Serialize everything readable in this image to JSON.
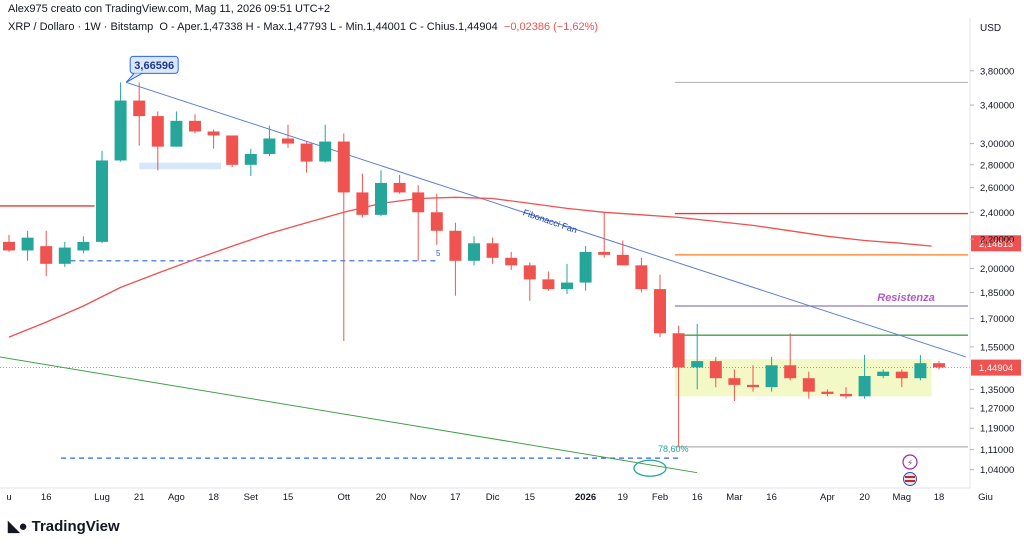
{
  "header": {
    "title": "Alex975 creato con TradingView.com, Mag 11, 2026 09:51 UTC+2",
    "symbol": "XRP / Dollaro · 1W · Bitstamp",
    "ohlc": "O - Aper.1,47338  H - Max.1,47793  L - Min.1,44001  C - Chius.1,44904",
    "change": "−0,02386 (−1,62%)"
  },
  "branding": {
    "name": "TradingView"
  },
  "colors": {
    "up": "#26a69a",
    "down": "#ef5350",
    "trendline": "#5b7fd6",
    "ma": "#f05050",
    "green_line": "#43a047",
    "orange_line": "#ff7a1a",
    "purple_line": "#8e7cc3",
    "zone": "#f3f9c6",
    "support_dash": "#2962ff"
  },
  "chart_data": {
    "type": "candlestick",
    "currency": "USD",
    "y_axis_scale": "log",
    "ylim": [
      0.98,
      4.2
    ],
    "y_ticks": [
      "3,80000",
      "3,40000",
      "3,00000",
      "2,80000",
      "2,60000",
      "2,40000",
      "2,20000",
      "2,00000",
      "1,85000",
      "1,70000",
      "1,55000",
      "1,35000",
      "1,27000",
      "1,19000",
      "1,11000",
      "1,04000"
    ],
    "y_tick_values": [
      3.8,
      3.4,
      3.0,
      2.8,
      2.6,
      2.4,
      2.2,
      2.0,
      1.85,
      1.7,
      1.55,
      1.35,
      1.27,
      1.19,
      1.11,
      1.04
    ],
    "x_ticks": [
      "u",
      "16",
      "Lug",
      "21",
      "Ago",
      "18",
      "Set",
      "15",
      "Ott",
      "20",
      "Nov",
      "17",
      "Dic",
      "15",
      "2026",
      "19",
      "Feb",
      "16",
      "Mar",
      "16",
      "Apr",
      "20",
      "Mag",
      "18",
      "Giu"
    ],
    "x_tick_weeks": [
      0,
      2,
      5,
      7,
      9,
      11,
      13,
      15,
      18,
      20,
      22,
      24,
      26,
      28,
      31,
      33,
      35,
      37,
      39,
      41,
      44,
      46,
      48,
      50,
      52.5
    ],
    "last_price": "1,44904",
    "ma_label": "2,14813",
    "candles": [
      {
        "o": 2.18,
        "h": 2.23,
        "l": 2.11,
        "c": 2.12
      },
      {
        "o": 2.12,
        "h": 2.26,
        "l": 2.05,
        "c": 2.21
      },
      {
        "o": 2.15,
        "h": 2.26,
        "l": 1.95,
        "c": 2.03
      },
      {
        "o": 2.03,
        "h": 2.18,
        "l": 2.01,
        "c": 2.14
      },
      {
        "o": 2.12,
        "h": 2.22,
        "l": 2.1,
        "c": 2.18
      },
      {
        "o": 2.18,
        "h": 2.93,
        "l": 2.17,
        "c": 2.84
      },
      {
        "o": 2.84,
        "h": 3.66,
        "l": 2.83,
        "c": 3.45
      },
      {
        "o": 3.45,
        "h": 3.66,
        "l": 2.98,
        "c": 3.28
      },
      {
        "o": 3.28,
        "h": 3.33,
        "l": 2.75,
        "c": 2.97
      },
      {
        "o": 2.97,
        "h": 3.33,
        "l": 2.97,
        "c": 3.23
      },
      {
        "o": 3.23,
        "h": 3.3,
        "l": 3.1,
        "c": 3.12
      },
      {
        "o": 3.12,
        "h": 3.14,
        "l": 2.95,
        "c": 3.08
      },
      {
        "o": 3.08,
        "h": 3.08,
        "l": 2.78,
        "c": 2.8
      },
      {
        "o": 2.8,
        "h": 2.95,
        "l": 2.7,
        "c": 2.9
      },
      {
        "o": 2.9,
        "h": 3.18,
        "l": 2.88,
        "c": 3.05
      },
      {
        "o": 3.05,
        "h": 3.19,
        "l": 2.96,
        "c": 3.0
      },
      {
        "o": 3.0,
        "h": 3.02,
        "l": 2.73,
        "c": 2.83
      },
      {
        "o": 2.83,
        "h": 3.19,
        "l": 2.82,
        "c": 3.02
      },
      {
        "o": 3.02,
        "h": 3.1,
        "l": 1.58,
        "c": 2.56
      },
      {
        "o": 2.56,
        "h": 2.72,
        "l": 2.36,
        "c": 2.38
      },
      {
        "o": 2.38,
        "h": 2.75,
        "l": 2.37,
        "c": 2.64
      },
      {
        "o": 2.64,
        "h": 2.71,
        "l": 2.55,
        "c": 2.56
      },
      {
        "o": 2.56,
        "h": 2.62,
        "l": 2.05,
        "c": 2.4
      },
      {
        "o": 2.4,
        "h": 2.55,
        "l": 2.16,
        "c": 2.26
      },
      {
        "o": 2.26,
        "h": 2.32,
        "l": 1.83,
        "c": 2.05
      },
      {
        "o": 2.05,
        "h": 2.22,
        "l": 2.02,
        "c": 2.17
      },
      {
        "o": 2.17,
        "h": 2.21,
        "l": 2.03,
        "c": 2.07
      },
      {
        "o": 2.07,
        "h": 2.11,
        "l": 1.99,
        "c": 2.02
      },
      {
        "o": 2.02,
        "h": 2.04,
        "l": 1.8,
        "c": 1.93
      },
      {
        "o": 1.93,
        "h": 1.98,
        "l": 1.86,
        "c": 1.87
      },
      {
        "o": 1.87,
        "h": 2.03,
        "l": 1.84,
        "c": 1.91
      },
      {
        "o": 1.91,
        "h": 2.15,
        "l": 1.86,
        "c": 2.11
      },
      {
        "o": 2.11,
        "h": 2.4,
        "l": 2.07,
        "c": 2.09
      },
      {
        "o": 2.09,
        "h": 2.19,
        "l": 2.03,
        "c": 2.02
      },
      {
        "o": 2.02,
        "h": 2.07,
        "l": 1.85,
        "c": 1.87
      },
      {
        "o": 1.87,
        "h": 1.96,
        "l": 1.6,
        "c": 1.62
      },
      {
        "o": 1.62,
        "h": 1.66,
        "l": 1.12,
        "c": 1.45
      },
      {
        "o": 1.45,
        "h": 1.67,
        "l": 1.35,
        "c": 1.48
      },
      {
        "o": 1.48,
        "h": 1.5,
        "l": 1.36,
        "c": 1.4
      },
      {
        "o": 1.4,
        "h": 1.44,
        "l": 1.3,
        "c": 1.37
      },
      {
        "o": 1.37,
        "h": 1.46,
        "l": 1.34,
        "c": 1.36
      },
      {
        "o": 1.36,
        "h": 1.5,
        "l": 1.34,
        "c": 1.46
      },
      {
        "o": 1.46,
        "h": 1.62,
        "l": 1.39,
        "c": 1.4
      },
      {
        "o": 1.4,
        "h": 1.43,
        "l": 1.31,
        "c": 1.34
      },
      {
        "o": 1.34,
        "h": 1.35,
        "l": 1.32,
        "c": 1.33
      },
      {
        "o": 1.33,
        "h": 1.36,
        "l": 1.31,
        "c": 1.32
      },
      {
        "o": 1.32,
        "h": 1.51,
        "l": 1.31,
        "c": 1.41
      },
      {
        "o": 1.41,
        "h": 1.44,
        "l": 1.4,
        "c": 1.43
      },
      {
        "o": 1.43,
        "h": 1.44,
        "l": 1.36,
        "c": 1.4
      },
      {
        "o": 1.4,
        "h": 1.51,
        "l": 1.39,
        "c": 1.47
      },
      {
        "o": 1.47,
        "h": 1.48,
        "l": 1.44,
        "c": 1.45
      }
    ],
    "annotations": {
      "high_label": "3,66596",
      "fibonacci_label": "Fibonacci Fan",
      "resistance_label": "Resistenza",
      "fib_level_label": "78,60%",
      "small_label": "5"
    }
  }
}
